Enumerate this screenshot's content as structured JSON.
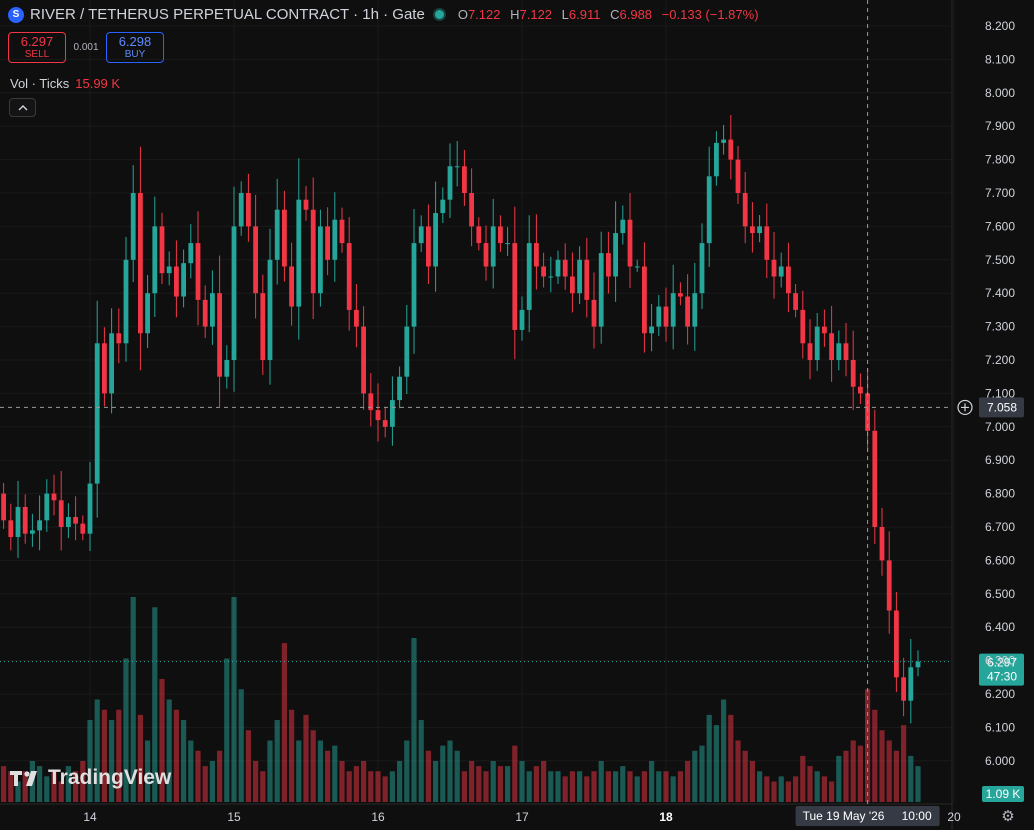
{
  "header": {
    "symbol_icon": "S",
    "title": "RIVER / TETHERUS PERPETUAL CONTRACT · 1h · Gate",
    "market_status": "open",
    "ohlc": {
      "o_label": "O",
      "o": "7.122",
      "h_label": "H",
      "h": "7.122",
      "l_label": "L",
      "l": "6.911",
      "c_label": "C",
      "c": "6.988",
      "change": "−0.133 (−1.87%)"
    }
  },
  "trade": {
    "sell_price": "6.297",
    "sell_label": "SELL",
    "spread": "0.001",
    "buy_price": "6.298",
    "buy_label": "BUY"
  },
  "volume": {
    "label": "Vol · Ticks",
    "value": "15.99 K"
  },
  "watermark": "TradingView",
  "colors": {
    "up": "#26a69a",
    "down": "#f23645",
    "background": "#0f0f0f",
    "buy": "#2962ff"
  },
  "chart_data": {
    "type": "candlestick",
    "interval": "1h",
    "ylim": [
      5.94,
      8.26
    ],
    "y_ticks": [
      "8.200",
      "8.100",
      "8.000",
      "7.900",
      "7.800",
      "7.700",
      "7.600",
      "7.500",
      "7.400",
      "7.300",
      "7.200",
      "7.100",
      "7.000",
      "6.900",
      "6.800",
      "6.700",
      "6.600",
      "6.500",
      "6.400",
      "6.300",
      "6.200",
      "6.100",
      "6.000"
    ],
    "x_ticks": [
      {
        "label": "14",
        "bar": 12
      },
      {
        "label": "15",
        "bar": 32
      },
      {
        "label": "16",
        "bar": 52
      },
      {
        "label": "17",
        "bar": 72
      },
      {
        "label": "18",
        "bar": 92,
        "bold": true
      },
      {
        "label": "20",
        "bar": 132
      }
    ],
    "crosshair": {
      "price": "7.058",
      "date": "Tue 19 May '26",
      "time": "10:00",
      "bar": 120
    },
    "last_price": {
      "price": "6.297",
      "countdown": "47:30"
    },
    "volume_label": "1.09 K",
    "closes": [
      6.72,
      6.67,
      6.76,
      6.68,
      6.69,
      6.72,
      6.8,
      6.78,
      6.7,
      6.73,
      6.71,
      6.68,
      6.83,
      7.25,
      7.1,
      7.28,
      7.25,
      7.5,
      7.7,
      7.28,
      7.4,
      7.6,
      7.46,
      7.48,
      7.39,
      7.49,
      7.55,
      7.38,
      7.3,
      7.4,
      7.15,
      7.2,
      7.6,
      7.7,
      7.6,
      7.4,
      7.2,
      7.5,
      7.65,
      7.48,
      7.36,
      7.68,
      7.65,
      7.4,
      7.6,
      7.5,
      7.62,
      7.55,
      7.35,
      7.3,
      7.1,
      7.05,
      7.02,
      7.0,
      7.08,
      7.15,
      7.3,
      7.55,
      7.6,
      7.48,
      7.64,
      7.68,
      7.78,
      7.78,
      7.7,
      7.6,
      7.55,
      7.48,
      7.6,
      7.55,
      7.55,
      7.29,
      7.35,
      7.55,
      7.48,
      7.45,
      7.45,
      7.5,
      7.45,
      7.4,
      7.5,
      7.38,
      7.3,
      7.52,
      7.45,
      7.58,
      7.62,
      7.48,
      7.48,
      7.28,
      7.3,
      7.36,
      7.3,
      7.4,
      7.39,
      7.3,
      7.4,
      7.55,
      7.75,
      7.85,
      7.86,
      7.8,
      7.7,
      7.6,
      7.58,
      7.6,
      7.5,
      7.45,
      7.48,
      7.4,
      7.35,
      7.25,
      7.2,
      7.3,
      7.28,
      7.2,
      7.25,
      7.2,
      7.12,
      7.1,
      6.988,
      6.7,
      6.6,
      6.45,
      6.25,
      6.18,
      6.28,
      6.297
    ],
    "volumes": [
      3.5,
      3.0,
      2.0,
      3.0,
      4.0,
      3.5,
      2.5,
      3.0,
      2.0,
      3.5,
      3.0,
      4.0,
      8.0,
      10.0,
      9.0,
      8.0,
      9.0,
      14.0,
      20.0,
      8.5,
      6.0,
      19.0,
      12.0,
      10.0,
      9.0,
      8.0,
      6.0,
      5.0,
      3.5,
      4.0,
      5.0,
      14.0,
      20.0,
      11.0,
      7.0,
      4.0,
      3.0,
      6.0,
      8.0,
      15.5,
      9.0,
      6.0,
      8.5,
      7.0,
      6.0,
      5.0,
      5.5,
      4.0,
      3.0,
      3.5,
      4.0,
      3.0,
      3.0,
      2.5,
      3.0,
      4.0,
      6.0,
      16.0,
      8.0,
      5.0,
      4.0,
      5.5,
      6.0,
      5.0,
      3.0,
      4.0,
      3.5,
      3.0,
      4.0,
      3.5,
      3.5,
      5.5,
      4.0,
      3.0,
      3.5,
      4.0,
      3.0,
      3.0,
      2.5,
      3.0,
      3.0,
      2.5,
      3.0,
      4.0,
      3.0,
      3.0,
      3.5,
      3.0,
      2.5,
      3.0,
      4.0,
      3.0,
      3.0,
      2.5,
      3.0,
      4.0,
      5.0,
      5.5,
      8.5,
      7.5,
      10.0,
      8.5,
      6.0,
      5.0,
      4.0,
      3.0,
      2.5,
      2.0,
      2.5,
      2.0,
      2.5,
      4.5,
      3.5,
      3.0,
      2.5,
      2.0,
      4.5,
      5.0,
      6.0,
      5.5,
      11.0,
      9.0,
      7.0,
      6.0,
      5.0,
      7.5,
      4.5,
      3.5
    ]
  }
}
